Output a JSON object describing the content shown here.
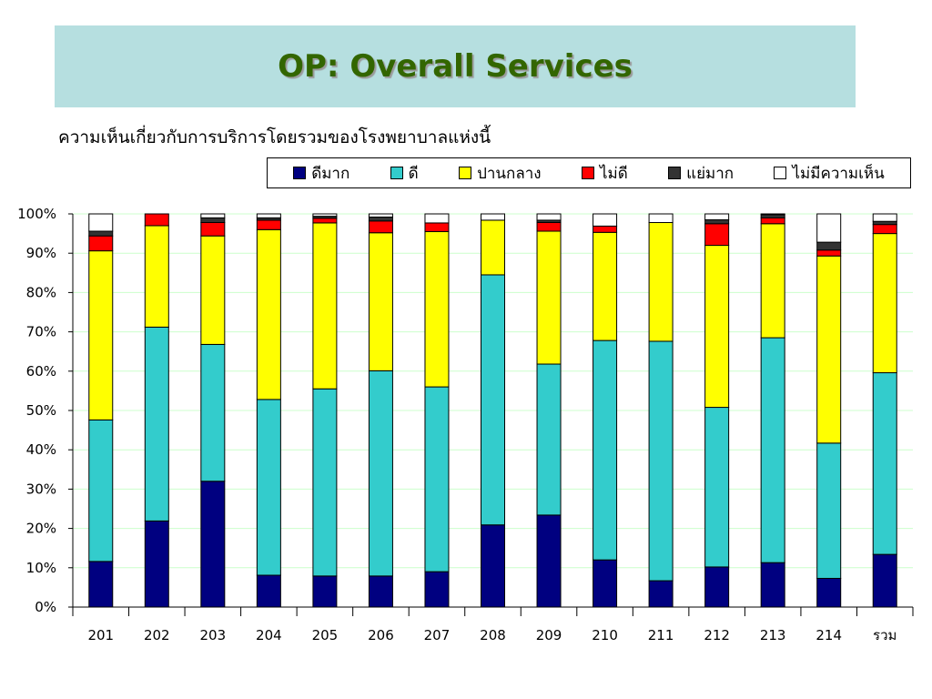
{
  "title": "OP: Overall Services",
  "subtitle": "ความเห็นเกี่ยวกับการบริการโดยรวมของโรงพยาบาลแห่งนี้",
  "chart_data": {
    "type": "bar",
    "stacked": true,
    "percent_stacked": true,
    "categories": [
      "201",
      "202",
      "203",
      "204",
      "205",
      "206",
      "207",
      "208",
      "209",
      "210",
      "211",
      "212",
      "213",
      "214",
      "รวม"
    ],
    "y_ticks": [
      "0%",
      "10%",
      "20%",
      "30%",
      "40%",
      "50%",
      "60%",
      "70%",
      "80%",
      "90%",
      "100%"
    ],
    "ylim": [
      0,
      100
    ],
    "grid": true,
    "legend_position": "top",
    "series": [
      {
        "name": "ดีมาก",
        "color": "#000080",
        "values": [
          11.6,
          21.9,
          32,
          8.1,
          7.9,
          7.9,
          9,
          20.9,
          23.4,
          12,
          6.7,
          10.2,
          11.3,
          7.3,
          13.4
        ]
      },
      {
        "name": "ดี",
        "color": "#33cccc",
        "values": [
          36,
          49.3,
          34.8,
          44.7,
          47.6,
          52.2,
          47,
          63.6,
          38.4,
          55.8,
          60.9,
          40.6,
          57.2,
          34.4,
          46.2
        ]
      },
      {
        "name": "ปานกลาง",
        "color": "#ffff00",
        "values": [
          43,
          25.8,
          27.6,
          43.2,
          42.2,
          35.1,
          39.5,
          13.9,
          33.8,
          27.5,
          30.2,
          41.2,
          29,
          47.6,
          35.4
        ]
      },
      {
        "name": "ไม่ดี",
        "color": "#ff0000",
        "values": [
          3.8,
          3,
          3.4,
          2.4,
          1.2,
          3,
          2.2,
          0,
          2.2,
          1.6,
          0,
          5.5,
          1.5,
          1.5,
          2.3
        ]
      },
      {
        "name": "แย่มาก",
        "color": "#333333",
        "values": [
          1.2,
          0,
          1.2,
          0.6,
          0.5,
          1,
          0,
          0,
          0.6,
          0,
          0,
          1,
          0.8,
          2,
          0.8
        ]
      },
      {
        "name": "ไม่มีความเห็น",
        "color": "#ffffff",
        "values": [
          4.4,
          0,
          1,
          1,
          0.6,
          0.8,
          2.3,
          1.6,
          1.6,
          3.1,
          2.2,
          1.5,
          0.2,
          7.2,
          1.9
        ]
      }
    ]
  }
}
